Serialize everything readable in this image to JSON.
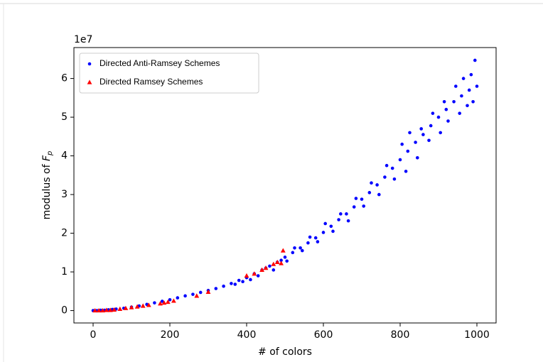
{
  "chart_data": {
    "type": "scatter",
    "xlabel": "# of colors",
    "ylabel": {
      "text": "modulus of ",
      "symbol": "F",
      "subscript": "p"
    },
    "y_offset_label": "1e7",
    "xlim": [
      -50,
      1050
    ],
    "xticks": [
      0,
      200,
      400,
      600,
      800,
      1000
    ],
    "ylim": [
      -0.32,
      6.8
    ],
    "yticks": [
      0,
      1,
      2,
      3,
      4,
      5,
      6
    ],
    "legend": "upper left",
    "series": [
      {
        "name": "Directed Anti-Ramsey Schemes",
        "color": "#0000ff",
        "marker": "circle",
        "x": [
          0,
          10,
          20,
          30,
          40,
          50,
          60,
          80,
          100,
          120,
          140,
          160,
          180,
          200,
          220,
          240,
          260,
          280,
          300,
          320,
          340,
          360,
          370,
          380,
          390,
          400,
          410,
          420,
          430,
          440,
          450,
          460,
          470,
          480,
          490,
          500,
          505,
          520,
          525,
          540,
          545,
          560,
          565,
          580,
          585,
          600,
          605,
          620,
          625,
          640,
          645,
          660,
          665,
          680,
          685,
          700,
          705,
          720,
          725,
          740,
          745,
          760,
          765,
          780,
          785,
          800,
          805,
          815,
          820,
          825,
          840,
          845,
          855,
          860,
          875,
          880,
          885,
          900,
          905,
          915,
          920,
          925,
          940,
          945,
          955,
          960,
          965,
          975,
          980,
          985,
          990,
          995,
          1000
        ],
        "values": [
          0,
          0,
          0.01,
          0.01,
          0.02,
          0.03,
          0.04,
          0.06,
          0.09,
          0.12,
          0.16,
          0.2,
          0.24,
          0.28,
          0.33,
          0.38,
          0.42,
          0.47,
          0.52,
          0.57,
          0.63,
          0.7,
          0.68,
          0.78,
          0.75,
          0.85,
          0.8,
          0.95,
          0.9,
          1.05,
          1.1,
          1.15,
          1.05,
          1.25,
          1.3,
          1.38,
          1.28,
          1.5,
          1.62,
          1.62,
          1.55,
          1.75,
          1.9,
          1.88,
          1.78,
          2.02,
          2.25,
          2.18,
          2.05,
          2.35,
          2.5,
          2.5,
          2.32,
          2.68,
          2.9,
          2.88,
          2.7,
          3.05,
          3.3,
          3.25,
          3.0,
          3.45,
          3.75,
          3.68,
          3.4,
          3.9,
          4.3,
          3.6,
          4.12,
          4.6,
          4.35,
          3.95,
          4.7,
          4.55,
          4.4,
          4.78,
          5.1,
          5.0,
          4.6,
          5.4,
          5.2,
          4.9,
          5.4,
          5.8,
          5.1,
          5.55,
          6.0,
          5.3,
          5.7,
          6.1,
          5.4,
          6.47,
          5.8
        ]
      },
      {
        "name": "Directed Ramsey Schemes",
        "color": "#ff0000",
        "marker": "triangle",
        "x": [
          5,
          15,
          25,
          35,
          45,
          55,
          70,
          85,
          100,
          115,
          130,
          145,
          175,
          185,
          195,
          210,
          270,
          300,
          400,
          420,
          440,
          450,
          470,
          480,
          490,
          495
        ],
        "values": [
          0,
          0,
          0,
          0.01,
          0.01,
          0.02,
          0.04,
          0.06,
          0.08,
          0.1,
          0.12,
          0.14,
          0.18,
          0.2,
          0.22,
          0.25,
          0.38,
          0.48,
          0.9,
          0.95,
          1.05,
          1.1,
          1.2,
          1.25,
          1.22,
          1.55
        ]
      }
    ]
  }
}
